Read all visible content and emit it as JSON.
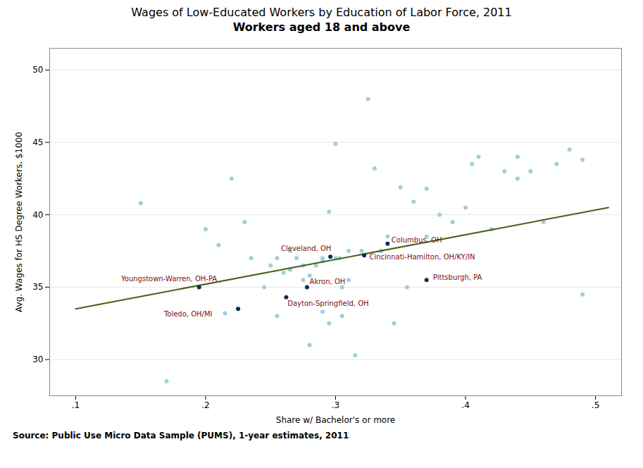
{
  "chart_data": {
    "type": "scatter",
    "title": "Wages of Low-Educated Workers by Education of Labor Force, 2011",
    "subtitle": "Workers aged 18 and above",
    "xlabel": "Share w/ Bachelor's or more",
    "ylabel": "Avg. Wages for HS Degree Workers, $1000",
    "source": "Source: Public Use Micro Data Sample (PUMS), 1-year estimates, 2011",
    "xlim": [
      0.08,
      0.52
    ],
    "ylim": [
      27.5,
      51.5
    ],
    "xticks": [
      {
        "value": 0.1,
        "label": ".1"
      },
      {
        "value": 0.2,
        "label": ".2"
      },
      {
        "value": 0.3,
        "label": ".3"
      },
      {
        "value": 0.4,
        "label": ".4"
      },
      {
        "value": 0.5,
        "label": ".5"
      }
    ],
    "yticks": [
      30,
      35,
      40,
      45,
      50
    ],
    "grid": "y",
    "series": [
      {
        "type": "scatter",
        "color": "#9ecfdf",
        "x": [
          0.15,
          0.17,
          0.195,
          0.2,
          0.21,
          0.215,
          0.22,
          0.225,
          0.23,
          0.235,
          0.245,
          0.25,
          0.255,
          0.255,
          0.26,
          0.265,
          0.265,
          0.27,
          0.275,
          0.275,
          0.28,
          0.28,
          0.285,
          0.29,
          0.29,
          0.29,
          0.295,
          0.295,
          0.3,
          0.3,
          0.303,
          0.305,
          0.305,
          0.31,
          0.31,
          0.315,
          0.32,
          0.325,
          0.33,
          0.335,
          0.34,
          0.345,
          0.35,
          0.355,
          0.36,
          0.37,
          0.37,
          0.38,
          0.39,
          0.4,
          0.405,
          0.41,
          0.42,
          0.43,
          0.44,
          0.44,
          0.45,
          0.46,
          0.47,
          0.48,
          0.49,
          0.49
        ],
        "values": [
          40.8,
          28.5,
          35.0,
          39.0,
          37.9,
          33.2,
          42.5,
          33.5,
          39.5,
          37.0,
          35.0,
          36.5,
          33.0,
          37.0,
          36.0,
          36.2,
          37.5,
          37.0,
          36.5,
          35.5,
          35.8,
          31.0,
          36.5,
          37.0,
          33.3,
          36.8,
          32.5,
          40.2,
          37.0,
          44.9,
          37.0,
          33.0,
          35.0,
          37.5,
          35.5,
          30.3,
          37.5,
          48.0,
          43.2,
          37.5,
          38.5,
          32.5,
          41.9,
          35.0,
          40.9,
          38.5,
          41.8,
          40.0,
          39.5,
          40.5,
          43.5,
          44.0,
          39.0,
          43.0,
          42.5,
          44.0,
          43.0,
          39.5,
          43.5,
          44.5,
          34.5,
          43.8
        ]
      },
      {
        "type": "line",
        "color": "#4a5e1a",
        "x": [
          0.1,
          0.51
        ],
        "values": [
          33.5,
          40.5
        ]
      },
      {
        "type": "scatter",
        "color": "#0d2d4e",
        "x": [
          0.195,
          0.225,
          0.262,
          0.278,
          0.296,
          0.322,
          0.34,
          0.37
        ],
        "values": [
          35.0,
          33.5,
          34.3,
          35.0,
          37.1,
          37.2,
          38.0,
          35.5
        ]
      }
    ],
    "annotations": [
      {
        "text": "Youngstown-Warren, OH-PA",
        "x": 0.135,
        "y": 35.4,
        "color": "#7b1010"
      },
      {
        "text": "Toledo, OH/MI",
        "x": 0.168,
        "y": 33.0,
        "color": "#7b1010"
      },
      {
        "text": "Dayton-Springfield, OH",
        "x": 0.263,
        "y": 33.7,
        "color": "#7b1010"
      },
      {
        "text": "Akron, OH",
        "x": 0.28,
        "y": 35.2,
        "color": "#7b1010"
      },
      {
        "text": "Cleveland, OH",
        "x": 0.258,
        "y": 37.5,
        "color": "#7b1010"
      },
      {
        "text": "Cincinnati-Hamilton, OH/KY/IN",
        "x": 0.326,
        "y": 36.9,
        "color": "#7b1010"
      },
      {
        "text": "Columbus, OH",
        "x": 0.343,
        "y": 38.1,
        "color": "#7b1010"
      },
      {
        "text": "Pittsburgh, PA",
        "x": 0.375,
        "y": 35.5,
        "color": "#7b1010"
      }
    ]
  }
}
